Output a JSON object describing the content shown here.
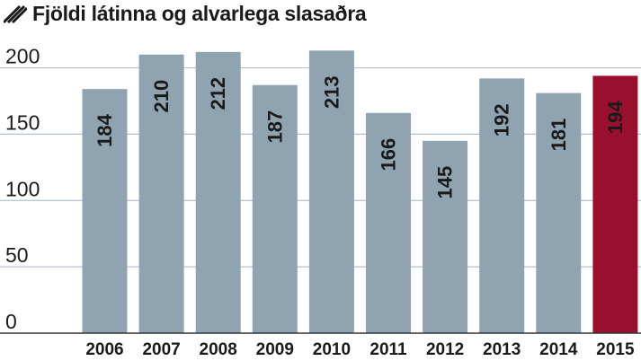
{
  "chart_data": {
    "type": "bar",
    "title": "Fjöldi látinna og alvarlega slasaðra",
    "xlabel": "",
    "ylabel": "",
    "categories": [
      "2006",
      "2007",
      "2008",
      "2009",
      "2010",
      "2011",
      "2012",
      "2013",
      "2014",
      "2015"
    ],
    "values": [
      184,
      210,
      212,
      187,
      213,
      166,
      145,
      192,
      181,
      194
    ],
    "ylim": [
      0,
      220
    ],
    "yticks": [
      0,
      50,
      100,
      150,
      200
    ],
    "grid": true,
    "legend": "none",
    "highlight_category": "2015",
    "colors": {
      "bar": "#8fa3b1",
      "highlight": "#98102e",
      "label": "#1a1a1a",
      "grid": "#b5c0c8",
      "axis": "#333333"
    }
  }
}
